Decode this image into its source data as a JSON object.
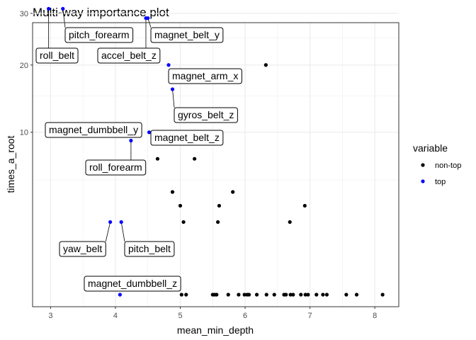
{
  "chart_data": {
    "type": "scatter",
    "title": "Multi-way importance plot",
    "xlabel": "mean_min_depth",
    "ylabel": "times_a_root",
    "xlim": [
      2.72,
      8.4
    ],
    "x_ticks": [
      3,
      4,
      5,
      6,
      7,
      8
    ],
    "y_ticks": [
      10,
      20,
      30
    ],
    "y_scale": "sqrt",
    "grid": true,
    "legend": {
      "title": "variable",
      "position": "right",
      "entries": [
        {
          "name": "non-top",
          "color": "#000000"
        },
        {
          "name": "top",
          "color": "#0000ff"
        }
      ]
    },
    "points_top": [
      {
        "label": "roll_belt",
        "x": 2.97,
        "y": 31
      },
      {
        "label": "pitch_forearm",
        "x": 3.19,
        "y": 31
      },
      {
        "label": "magnet_belt_y",
        "x": 4.5,
        "y": 29
      },
      {
        "label": "accel_belt_z",
        "x": 4.47,
        "y": 29
      },
      {
        "label": "magnet_arm_x",
        "x": 4.82,
        "y": 20
      },
      {
        "label": "gyros_belt_z",
        "x": 4.88,
        "y": 16
      },
      {
        "label": "magnet_dumbbell_y",
        "x": 4.01,
        "y": 11
      },
      {
        "label": "magnet_belt_z",
        "x": 4.52,
        "y": 10
      },
      {
        "label": "roll_forearm",
        "x": 4.24,
        "y": 9
      },
      {
        "label": "yaw_belt",
        "x": 3.92,
        "y": 2
      },
      {
        "label": "pitch_belt",
        "x": 4.09,
        "y": 2
      },
      {
        "label": "magnet_dumbbell_z",
        "x": 4.07,
        "y": 0
      }
    ],
    "points_nontop": [
      {
        "x": 6.32,
        "y": 20
      },
      {
        "x": 4.65,
        "y": 7
      },
      {
        "x": 5.22,
        "y": 7
      },
      {
        "x": 4.88,
        "y": 4
      },
      {
        "x": 5.81,
        "y": 4
      },
      {
        "x": 5.0,
        "y": 3
      },
      {
        "x": 5.6,
        "y": 3
      },
      {
        "x": 6.92,
        "y": 3
      },
      {
        "x": 5.05,
        "y": 2
      },
      {
        "x": 5.58,
        "y": 2
      },
      {
        "x": 6.69,
        "y": 2
      },
      {
        "x": 5.02,
        "y": 0
      },
      {
        "x": 5.09,
        "y": 0
      },
      {
        "x": 5.5,
        "y": 0
      },
      {
        "x": 5.53,
        "y": 0
      },
      {
        "x": 5.56,
        "y": 0
      },
      {
        "x": 5.74,
        "y": 0
      },
      {
        "x": 5.9,
        "y": 0
      },
      {
        "x": 5.99,
        "y": 0
      },
      {
        "x": 6.03,
        "y": 0
      },
      {
        "x": 6.06,
        "y": 0
      },
      {
        "x": 6.18,
        "y": 0
      },
      {
        "x": 6.33,
        "y": 0
      },
      {
        "x": 6.45,
        "y": 0
      },
      {
        "x": 6.6,
        "y": 0
      },
      {
        "x": 6.63,
        "y": 0
      },
      {
        "x": 6.7,
        "y": 0
      },
      {
        "x": 6.74,
        "y": 0
      },
      {
        "x": 6.86,
        "y": 0
      },
      {
        "x": 6.93,
        "y": 0
      },
      {
        "x": 6.97,
        "y": 0
      },
      {
        "x": 7.1,
        "y": 0
      },
      {
        "x": 7.2,
        "y": 0
      },
      {
        "x": 7.26,
        "y": 0
      },
      {
        "x": 7.56,
        "y": 0
      },
      {
        "x": 7.72,
        "y": 0
      },
      {
        "x": 8.12,
        "y": 0
      }
    ]
  }
}
